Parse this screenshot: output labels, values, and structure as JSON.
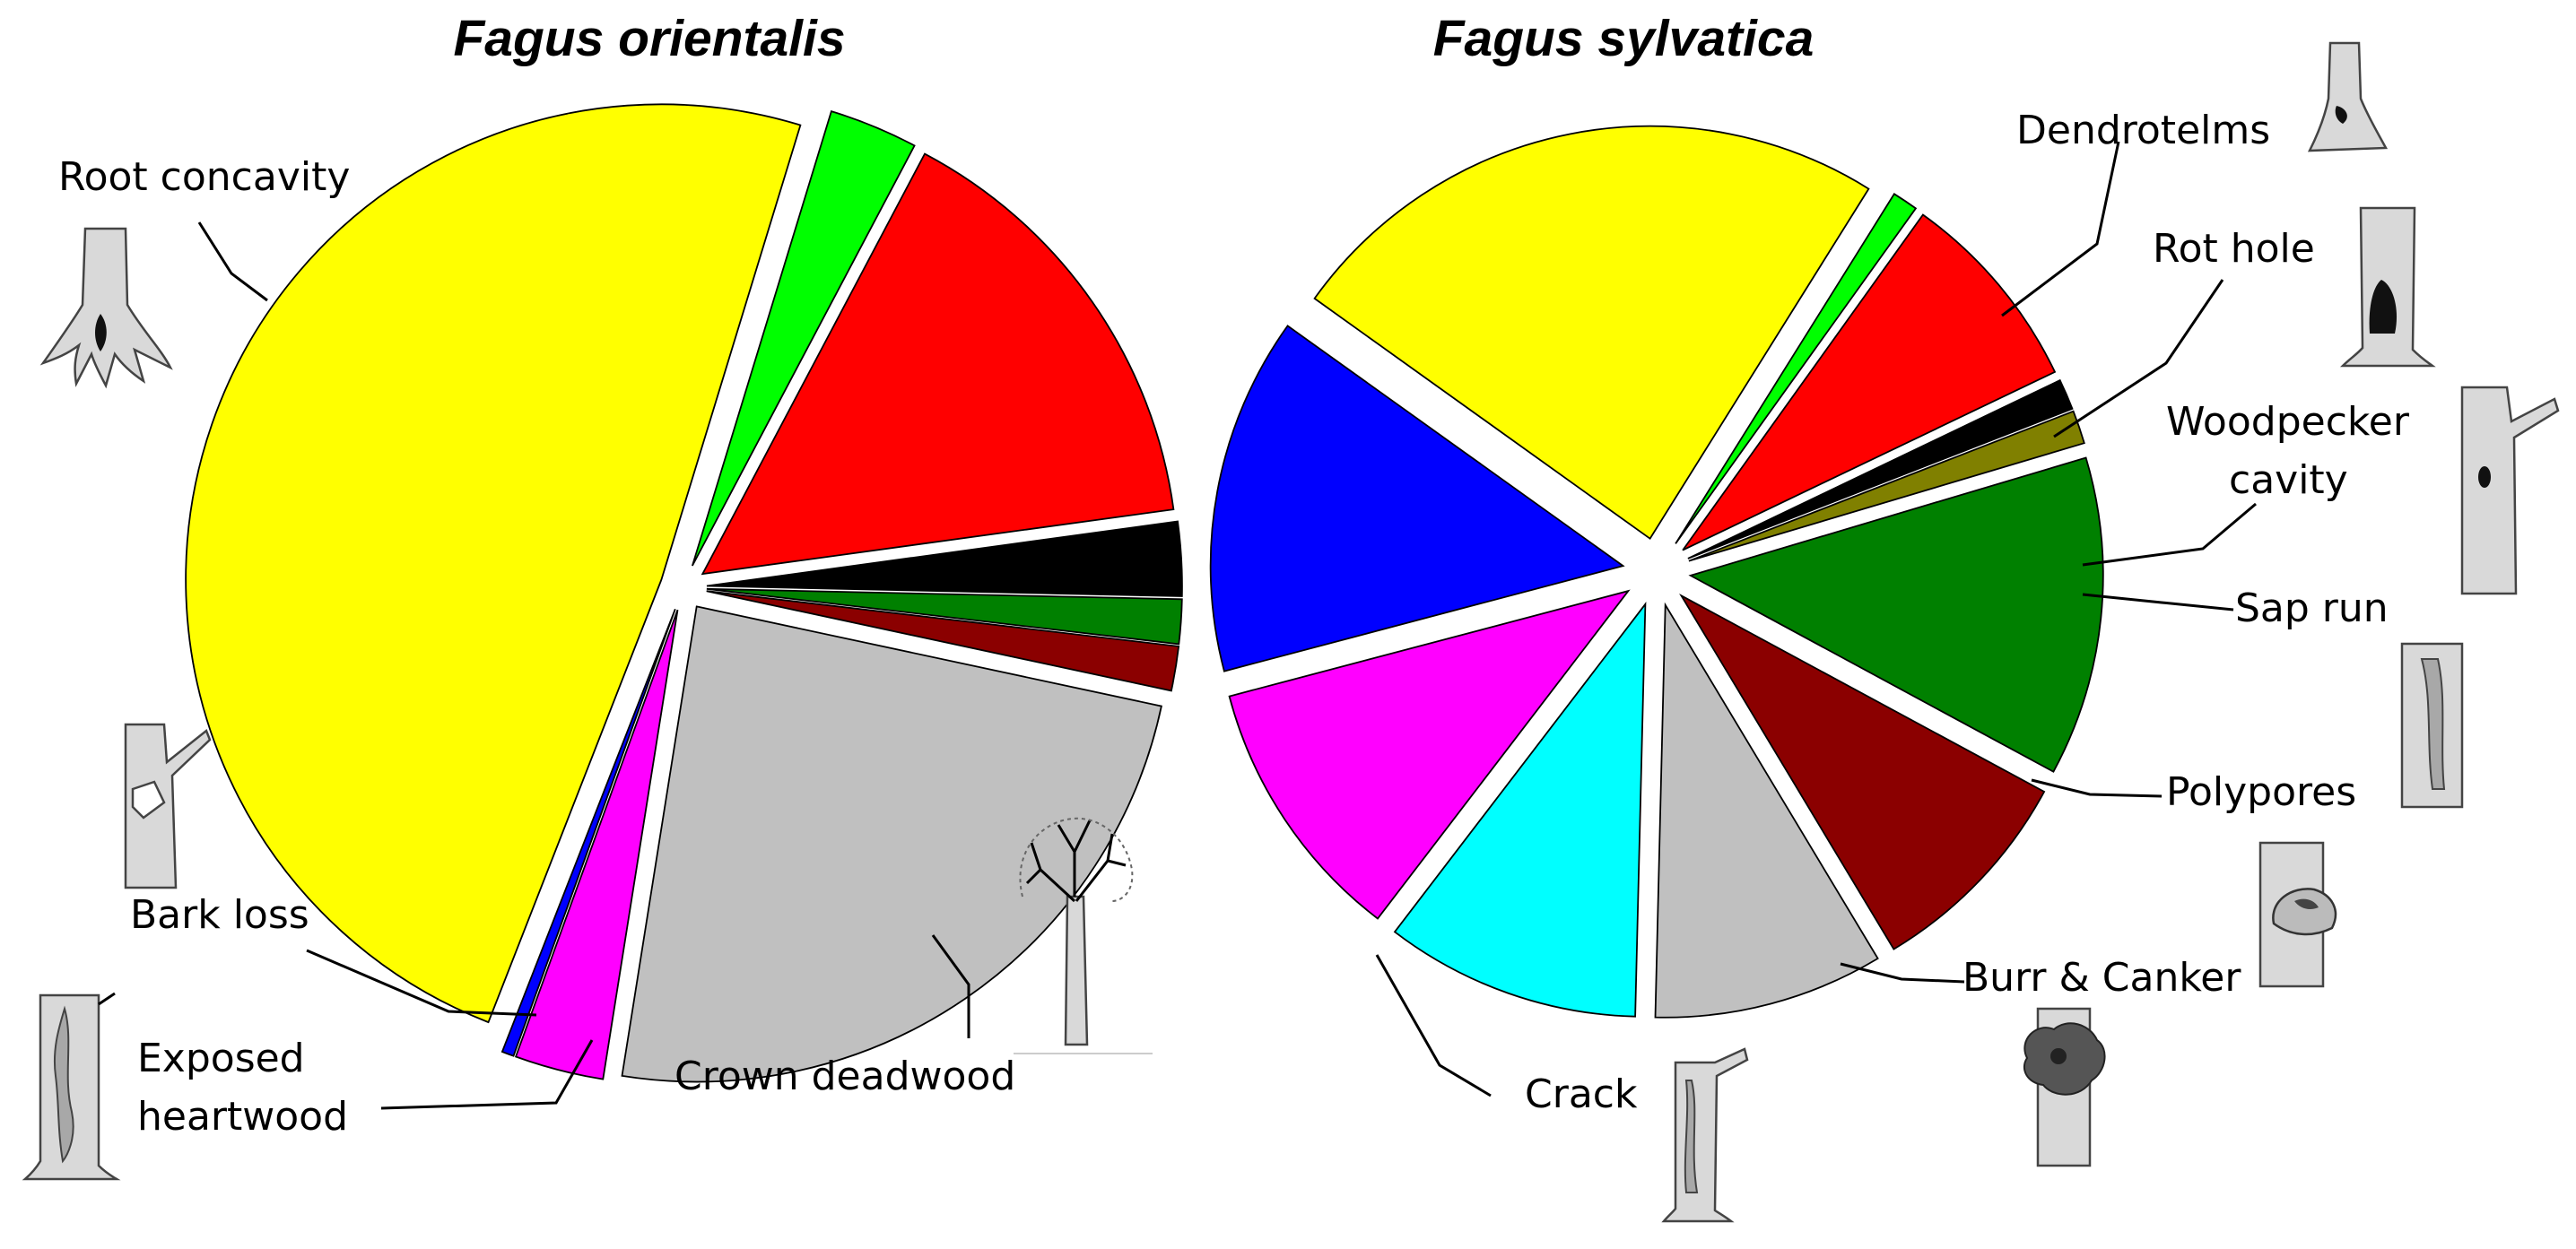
{
  "chart_data": [
    {
      "type": "pie",
      "title": "Fagus orientalis",
      "slices": [
        {
          "label": "",
          "value": 3.0,
          "color": "#00ff00"
        },
        {
          "label": "",
          "value": 15.0,
          "color": "#ff0000"
        },
        {
          "label": "",
          "value": 2.5,
          "color": "#000000"
        },
        {
          "label": "",
          "value": 1.5,
          "color": "#008000"
        },
        {
          "label": "",
          "value": 1.5,
          "color": "#8b0000"
        },
        {
          "label": "Crown deadwood",
          "value": 24.0,
          "color": "#c0c0c0"
        },
        {
          "label": "Exposed heartwood",
          "value": 3.0,
          "color": "#ff00ff"
        },
        {
          "label": "Bark loss",
          "value": 0.4,
          "color": "#0000ff"
        },
        {
          "label": "Root concavity",
          "value": 48.5,
          "color": "#ffff00"
        }
      ]
    },
    {
      "type": "pie",
      "title": "Fagus sylvatica",
      "slices": [
        {
          "label": "Dendrotelms",
          "value": 1.0,
          "color": "#00ff00"
        },
        {
          "label": "Rot hole",
          "value": 8.0,
          "color": "#ff0000"
        },
        {
          "label": "Woodpecker cavity",
          "value": 1.2,
          "color": "#000000"
        },
        {
          "label": "Sap run",
          "value": 1.3,
          "color": "#808000"
        },
        {
          "label": "Polypores",
          "value": 12.5,
          "color": "#008000"
        },
        {
          "label": "Burr & Canker",
          "value": 8.5,
          "color": "#8b0000"
        },
        {
          "label": "",
          "value": 9.0,
          "color": "#c0c0c0"
        },
        {
          "label": "Crack",
          "value": 10.0,
          "color": "#00ffff"
        },
        {
          "label": "",
          "value": 10.5,
          "color": "#ff00ff"
        },
        {
          "label": "",
          "value": 14.0,
          "color": "#0000ff"
        },
        {
          "label": "",
          "value": 24.0,
          "color": "#ffff00"
        }
      ]
    }
  ],
  "labels": {
    "root_concavity": "Root concavity",
    "bark_loss": "Bark loss",
    "exposed_1": "Exposed",
    "exposed_2": "heartwood",
    "crown_deadwood": "Crown deadwood",
    "dendrotelms": "Dendrotelms",
    "rot_hole": "Rot hole",
    "woodpecker_1": "Woodpecker",
    "woodpecker_2": "cavity",
    "sap_run": "Sap run",
    "polypores": "Polypores",
    "burr_canker": "Burr & Canker",
    "crack": "Crack"
  },
  "icons": [
    "root-concavity-icon",
    "bark-loss-icon",
    "exposed-heartwood-icon",
    "crown-deadwood-icon",
    "dendrotelms-icon",
    "rot-hole-icon",
    "woodpecker-cavity-icon",
    "sap-run-icon",
    "polypores-icon",
    "burr-canker-icon",
    "crack-icon"
  ]
}
